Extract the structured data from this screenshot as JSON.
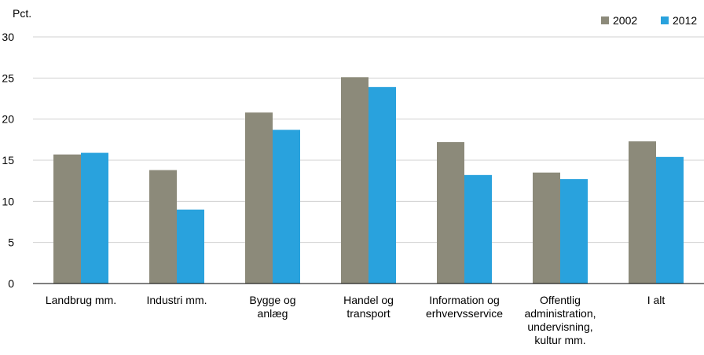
{
  "chart_data": {
    "type": "bar",
    "ylabel": "Pct.",
    "ylim": [
      0,
      30
    ],
    "yticks": [
      0,
      5,
      10,
      15,
      20,
      25,
      30
    ],
    "grid": true,
    "legend_position": "top-right",
    "categories": [
      [
        "Landbrug mm."
      ],
      [
        "Industri mm."
      ],
      [
        "Bygge og",
        "anlæg"
      ],
      [
        "Handel og",
        "transport"
      ],
      [
        "Information og",
        "erhvervsservice"
      ],
      [
        "Offentlig",
        "administration,",
        "undervisning,",
        "kultur mm."
      ],
      [
        "I alt"
      ]
    ],
    "series": [
      {
        "name": "2002",
        "color": "#8c8a7a",
        "values": [
          15.7,
          13.8,
          20.8,
          25.1,
          17.2,
          13.5,
          17.3
        ]
      },
      {
        "name": "2012",
        "color": "#29a2dd",
        "values": [
          15.9,
          9.0,
          18.7,
          23.9,
          13.2,
          12.7,
          15.4
        ]
      }
    ]
  }
}
